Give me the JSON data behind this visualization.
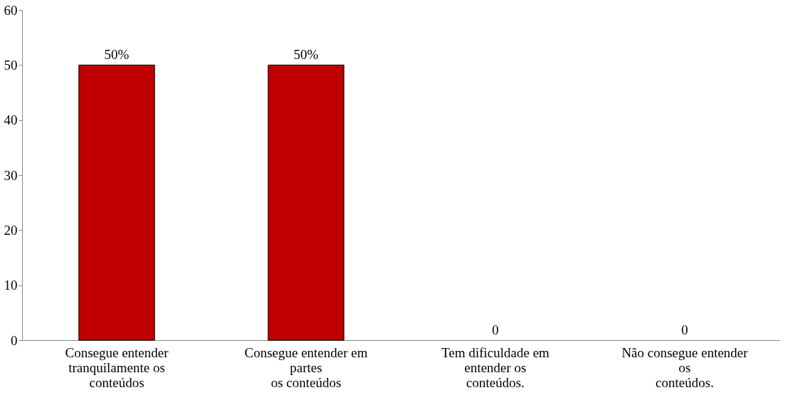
{
  "chart_data": {
    "type": "bar",
    "categories": [
      "Consegue entender\ntranquilamente os\nconteúdos",
      "Consegue entender em\npartes\nos conteúdos",
      "Tem dificuldade em\nentender os\nconteúdos.",
      "Não consegue entender\nos\nconteúdos."
    ],
    "values": [
      50,
      50,
      0,
      0
    ],
    "value_labels": [
      "50%",
      "50%",
      "0",
      "0"
    ],
    "color": "#c00000",
    "ylim": [
      0,
      60
    ],
    "yticks": [
      0,
      10,
      20,
      30,
      40,
      50,
      60
    ],
    "grid": false
  }
}
